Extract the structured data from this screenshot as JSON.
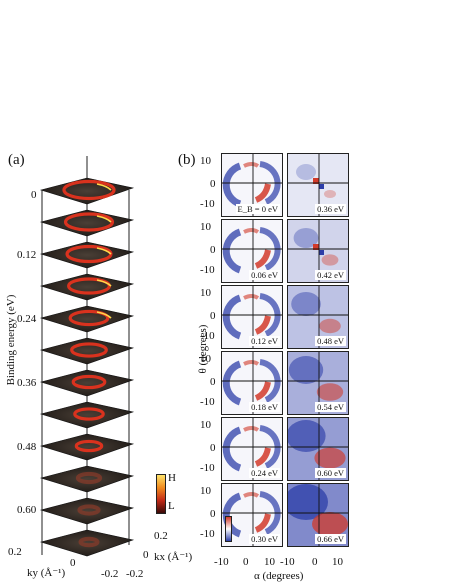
{
  "panel_a": {
    "label": "(a)",
    "ylabel": "Binding energy (eV)",
    "energy_ticks": [
      "0",
      "0.12",
      "0.24",
      "0.36",
      "0.48",
      "0.60"
    ],
    "ky_label": "ky (Å⁻¹)",
    "kx_label": "kx (Å⁻¹)",
    "ky_ticks": [
      "0.2",
      "0",
      "-0.2"
    ],
    "kx_ticks": [
      "0.2",
      "0",
      "-0.2"
    ],
    "colorbar": {
      "high": "H",
      "low": "L"
    }
  },
  "panel_b": {
    "label": "(b)",
    "ylabel": "θ (degrees)",
    "xlabel": "α (degrees)",
    "y_ticks": [
      "10",
      "0",
      "-10"
    ],
    "x_ticks": [
      "-10",
      "0",
      "10"
    ],
    "energies_left": [
      "E_B = 0 eV",
      "0.06 eV",
      "0.12 eV",
      "0.18 eV",
      "0.24 eV",
      "0.30 eV"
    ],
    "energies_right": [
      "0.36 eV",
      "0.42 eV",
      "0.48 eV",
      "0.54 eV",
      "0.60 eV",
      "0.66 eV"
    ]
  },
  "colors": {
    "red": "#d23a2a",
    "blue": "#2c3da8",
    "hot": "#ffd84a"
  }
}
